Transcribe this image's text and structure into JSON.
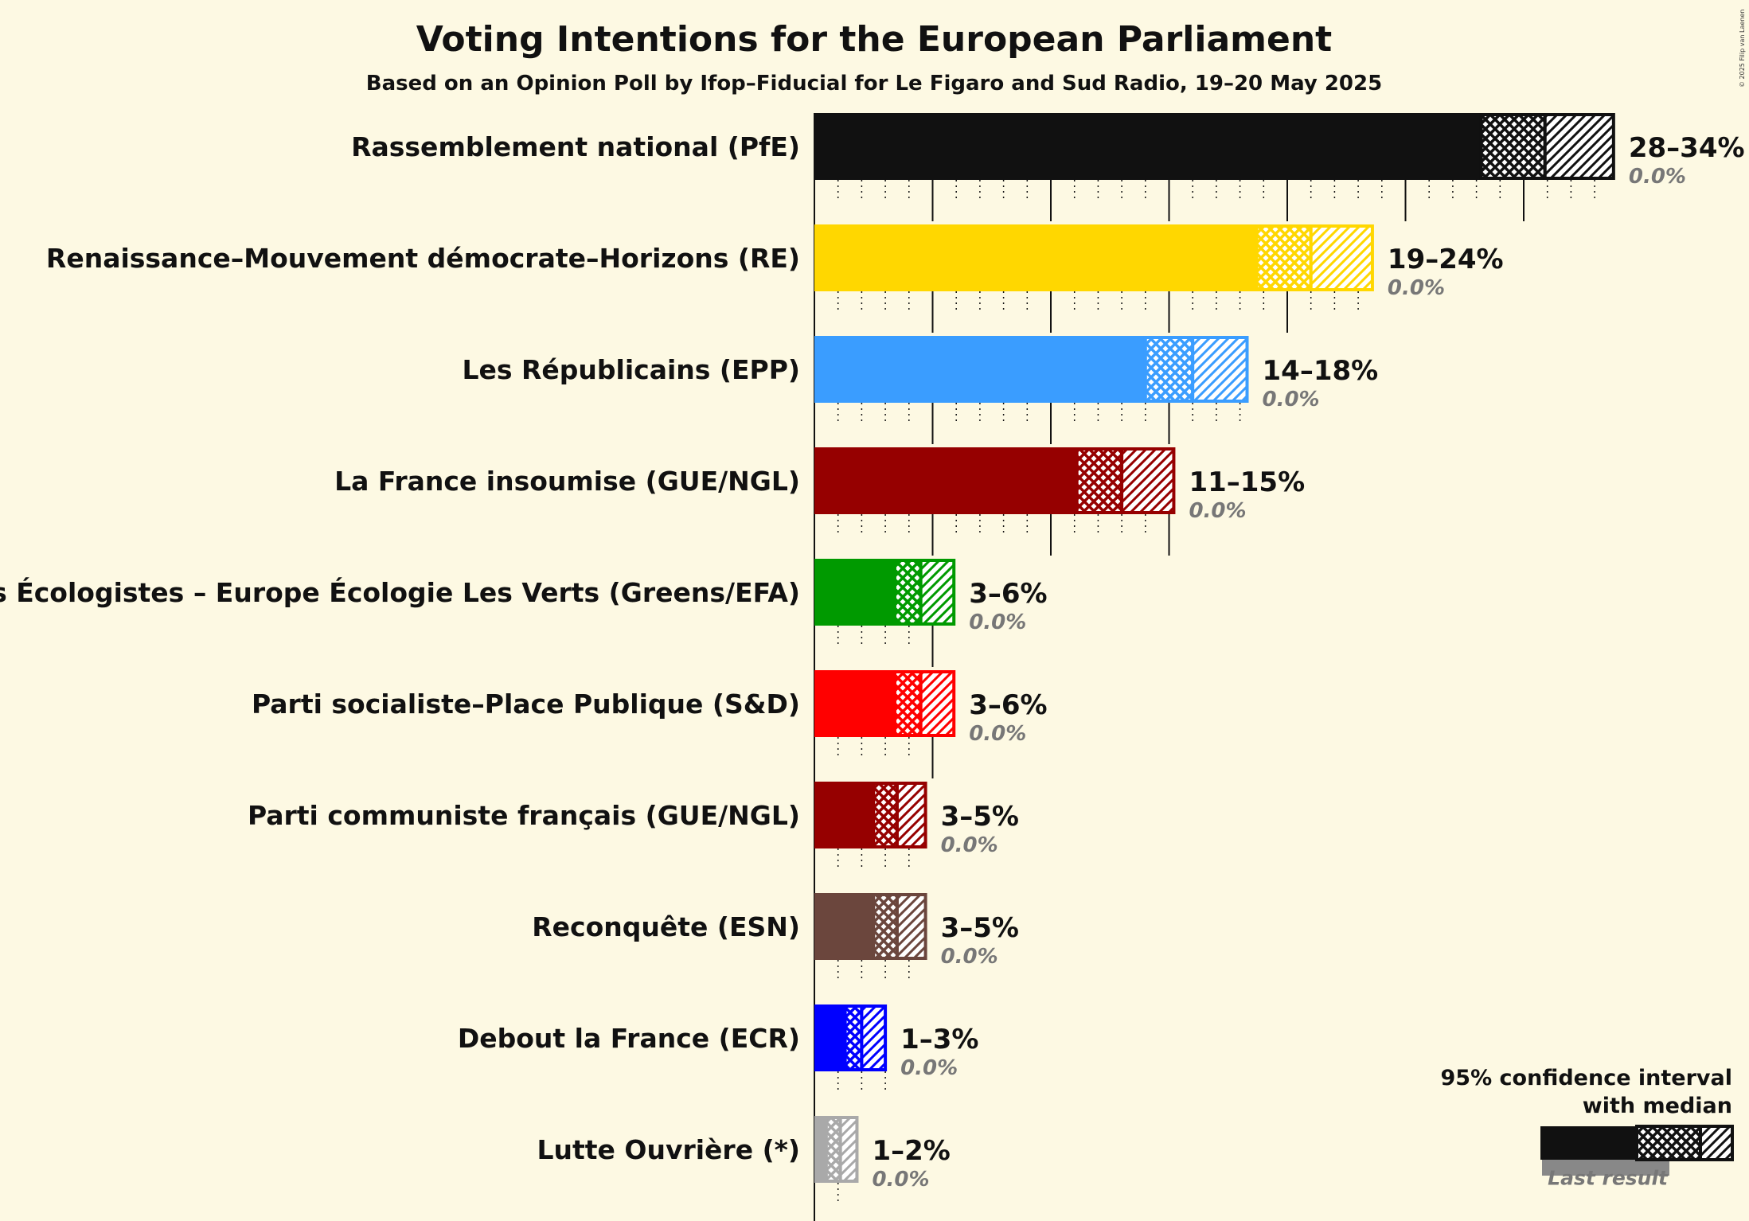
{
  "title": "Voting Intentions for the European Parliament",
  "subtitle": "Based on an Opinion Poll by Ifop–Fiducial for Le Figaro and Sud Radio, 19–20 May 2025",
  "copyright": "© 2025 Filip van Laenen",
  "legend": {
    "line1": "95% confidence interval",
    "line2": "with median",
    "last_result": "Last result"
  },
  "chart_data": {
    "type": "bar",
    "orientation": "horizontal",
    "title": "Voting Intentions for the European Parliament",
    "subtitle": "Based on an Opinion Poll by Ifop–Fiducial for Le Figaro and Sud Radio, 19–20 May 2025",
    "xlim": [
      0,
      34
    ],
    "grid": "dotted vertical lines every 1%, solid every 5%",
    "legend_placement": "bottom-right",
    "parties": [
      {
        "name": "Rassemblement national (PfE)",
        "range_label": "28–34%",
        "last_label": "0.0%",
        "low": 28.2,
        "median": 30.9,
        "high": 33.8,
        "last": 0.0,
        "color": "#111111"
      },
      {
        "name": "Renaissance–Mouvement démocrate–Horizons (RE)",
        "range_label": "19–24%",
        "last_label": "0.0%",
        "low": 18.7,
        "median": 21.0,
        "high": 23.6,
        "last": 0.0,
        "color": "#ffd700"
      },
      {
        "name": "Les Républicains (EPP)",
        "range_label": "14–18%",
        "last_label": "0.0%",
        "low": 14.0,
        "median": 16.0,
        "high": 18.3,
        "last": 0.0,
        "color": "#3a9dff"
      },
      {
        "name": "La France insoumise (GUE/NGL)",
        "range_label": "11–15%",
        "last_label": "0.0%",
        "low": 11.1,
        "median": 13.0,
        "high": 15.2,
        "last": 0.0,
        "color": "#960000"
      },
      {
        "name": "Les Écologistes – Europe Écologie Les Verts (Greens/EFA)",
        "range_label": "3–6%",
        "last_label": "0.0%",
        "low": 3.4,
        "median": 4.5,
        "high": 5.9,
        "last": 0.0,
        "color": "#009a00"
      },
      {
        "name": "Parti socialiste–Place Publique (S&D)",
        "range_label": "3–6%",
        "last_label": "0.0%",
        "low": 3.4,
        "median": 4.5,
        "high": 5.9,
        "last": 0.0,
        "color": "#ff0000"
      },
      {
        "name": "Parti communiste français (GUE/NGL)",
        "range_label": "3–5%",
        "last_label": "0.0%",
        "low": 2.5,
        "median": 3.5,
        "high": 4.7,
        "last": 0.0,
        "color": "#960000"
      },
      {
        "name": "Reconquête (ESN)",
        "range_label": "3–5%",
        "last_label": "0.0%",
        "low": 2.5,
        "median": 3.5,
        "high": 4.7,
        "last": 0.0,
        "color": "#6b463d"
      },
      {
        "name": "Debout la France (ECR)",
        "range_label": "1–3%",
        "last_label": "0.0%",
        "low": 1.3,
        "median": 2.0,
        "high": 3.0,
        "last": 0.0,
        "color": "#0000ff"
      },
      {
        "name": "Lutte Ouvrière (*)",
        "range_label": "1–2%",
        "last_label": "0.0%",
        "low": 0.5,
        "median": 1.1,
        "high": 1.8,
        "last": 0.0,
        "color": "#a9a9a9"
      }
    ]
  }
}
